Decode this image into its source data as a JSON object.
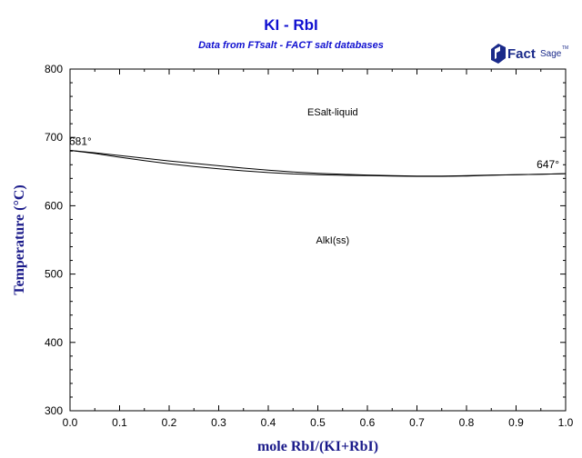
{
  "chart_data": {
    "type": "line",
    "title": "KI - RbI",
    "subtitle": "Data from FTsalt - FACT salt databases",
    "xlabel": "mole RbI/(KI+RbI)",
    "ylabel": "Temperature (°C)",
    "xlim": [
      0,
      1
    ],
    "ylim": [
      300,
      800
    ],
    "x_ticks": [
      "0.0",
      "0.1",
      "0.2",
      "0.3",
      "0.4",
      "0.5",
      "0.6",
      "0.7",
      "0.8",
      "0.9",
      "1.0"
    ],
    "y_ticks": [
      "300",
      "400",
      "500",
      "600",
      "700",
      "800"
    ],
    "series": [
      {
        "x": [
          0.0,
          0.05,
          0.1,
          0.15,
          0.2,
          0.25,
          0.3,
          0.35,
          0.4,
          0.45,
          0.5,
          0.55,
          0.6,
          0.65,
          0.7,
          0.75,
          0.8,
          0.85,
          0.9,
          0.95,
          1.0
        ],
        "values": [
          681,
          677.5,
          673.5,
          669.5,
          665.5,
          662,
          658.5,
          655,
          652,
          649.5,
          647.5,
          646,
          645,
          644,
          643.5,
          643.5,
          644,
          645,
          645.5,
          646,
          647
        ]
      },
      {
        "x": [
          0.0,
          0.05,
          0.1,
          0.15,
          0.2,
          0.25,
          0.3,
          0.35,
          0.4,
          0.45,
          0.5,
          0.55,
          0.6,
          0.65,
          0.7,
          0.75,
          0.8,
          0.85,
          0.9,
          0.95,
          1.0
        ],
        "values": [
          681,
          676.5,
          671,
          666,
          661.5,
          657.5,
          654,
          651,
          648.5,
          646.5,
          645.5,
          644.5,
          644,
          643.5,
          643,
          643,
          643.5,
          644.5,
          645.5,
          646,
          647
        ]
      }
    ],
    "annotations": [
      {
        "text": "681°",
        "x": 0.0,
        "y": 681
      },
      {
        "text": "647°",
        "x": 1.0,
        "y": 647
      }
    ],
    "regions": [
      {
        "text": "ESalt-liquid",
        "x": 0.53,
        "y": 732
      },
      {
        "text": "AlkI(ss)",
        "x": 0.53,
        "y": 545
      }
    ],
    "grid": false
  },
  "logo": {
    "text": "FactSage",
    "mark": "TM"
  }
}
